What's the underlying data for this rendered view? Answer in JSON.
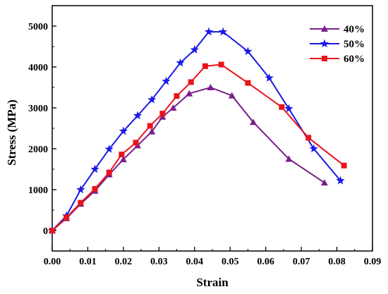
{
  "chart_data": {
    "type": "line",
    "title": "",
    "xlabel": "Strain",
    "ylabel": "Stress (MPa)",
    "xlim": [
      0.0,
      0.09
    ],
    "ylim": [
      -500,
      5500
    ],
    "x_ticks": [
      "0.00",
      "0.01",
      "0.02",
      "0.03",
      "0.04",
      "0.05",
      "0.06",
      "0.07",
      "0.08",
      "0.09"
    ],
    "y_ticks": [
      "0",
      "1000",
      "2000",
      "3000",
      "4000",
      "5000"
    ],
    "grid": false,
    "legend_position": "top-right",
    "series": [
      {
        "name": "40%",
        "color": "#7B1F8C",
        "marker": "triangle",
        "x": [
          0.0,
          0.004,
          0.008,
          0.012,
          0.016,
          0.02,
          0.024,
          0.028,
          0.031,
          0.034,
          0.0385,
          0.0445,
          0.0505,
          0.0565,
          0.0665,
          0.0765
        ],
        "y": [
          0,
          300,
          650,
          970,
          1370,
          1740,
          2080,
          2420,
          2780,
          3000,
          3350,
          3500,
          3300,
          2650,
          1750,
          1170
        ]
      },
      {
        "name": "50%",
        "color": "#1A1AE6",
        "marker": "star",
        "x": [
          0.0,
          0.004,
          0.008,
          0.012,
          0.016,
          0.02,
          0.024,
          0.028,
          0.032,
          0.036,
          0.04,
          0.044,
          0.048,
          0.055,
          0.061,
          0.0665,
          0.0735,
          0.081
        ],
        "y": [
          0,
          360,
          1000,
          1500,
          1990,
          2430,
          2810,
          3200,
          3650,
          4100,
          4420,
          4860,
          4860,
          4380,
          3730,
          2980,
          2000,
          1220
        ]
      },
      {
        "name": "60%",
        "color": "#E8141C",
        "marker": "square",
        "x": [
          0.0,
          0.004,
          0.008,
          0.012,
          0.016,
          0.0195,
          0.0235,
          0.0275,
          0.031,
          0.035,
          0.039,
          0.043,
          0.0475,
          0.055,
          0.0645,
          0.072,
          0.082
        ],
        "y": [
          0,
          320,
          680,
          1020,
          1420,
          1860,
          2150,
          2560,
          2860,
          3290,
          3630,
          4020,
          4060,
          3610,
          3020,
          2270,
          1590
        ]
      }
    ]
  }
}
